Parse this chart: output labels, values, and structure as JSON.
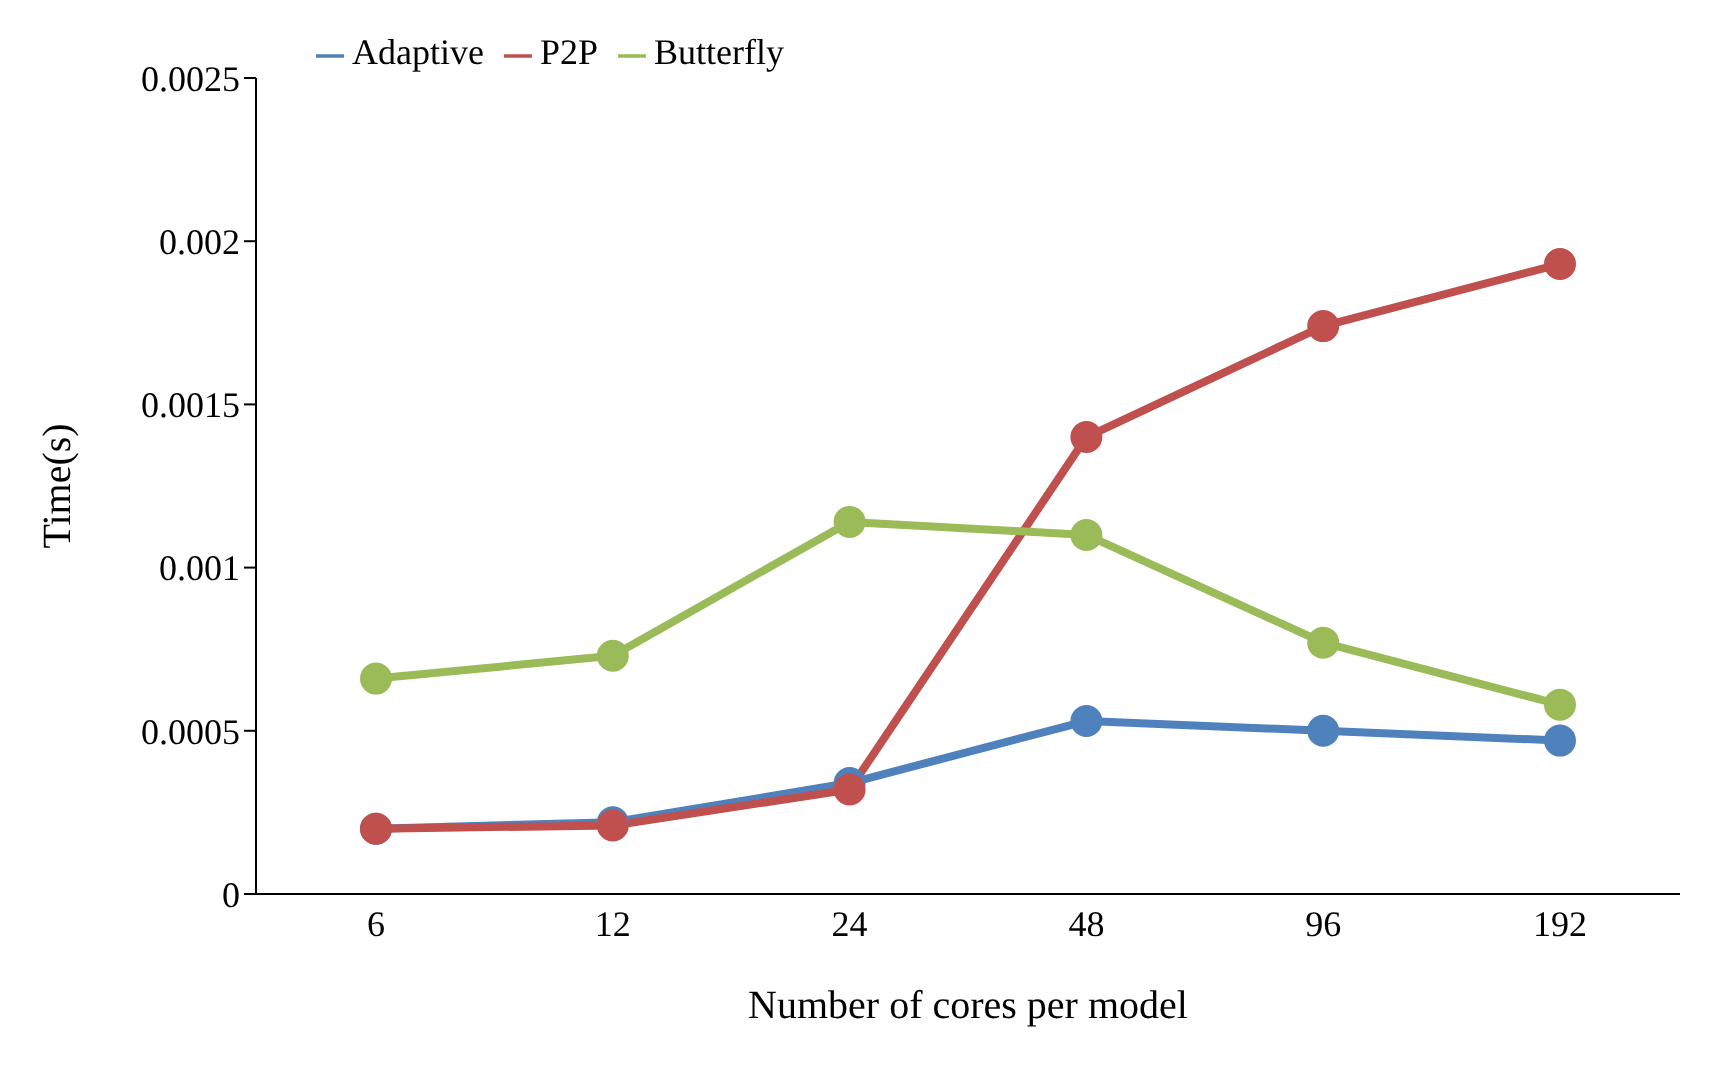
{
  "chart_data": {
    "type": "line",
    "xlabel": "Number of cores per model",
    "ylabel": "Time(s)",
    "categories": [
      "6",
      "12",
      "24",
      "48",
      "96",
      "192"
    ],
    "series": [
      {
        "name": "Adaptive",
        "color": "#4f81bd",
        "values": [
          0.0002,
          0.00022,
          0.00034,
          0.00053,
          0.0005,
          0.00047
        ]
      },
      {
        "name": "P2P",
        "color": "#c0504d",
        "values": [
          0.0002,
          0.00021,
          0.00032,
          0.0014,
          0.00174,
          0.00193
        ]
      },
      {
        "name": "Butterfly",
        "color": "#9bbb59",
        "values": [
          0.00066,
          0.00073,
          0.00114,
          0.0011,
          0.00077,
          0.00058
        ]
      }
    ],
    "ylim": [
      0,
      0.0025
    ],
    "yticks": [
      0,
      0.0005,
      0.001,
      0.0015,
      0.002,
      0.0025
    ],
    "grid": false,
    "legend": "top left",
    "marker": "circle",
    "line_style": "solid"
  }
}
